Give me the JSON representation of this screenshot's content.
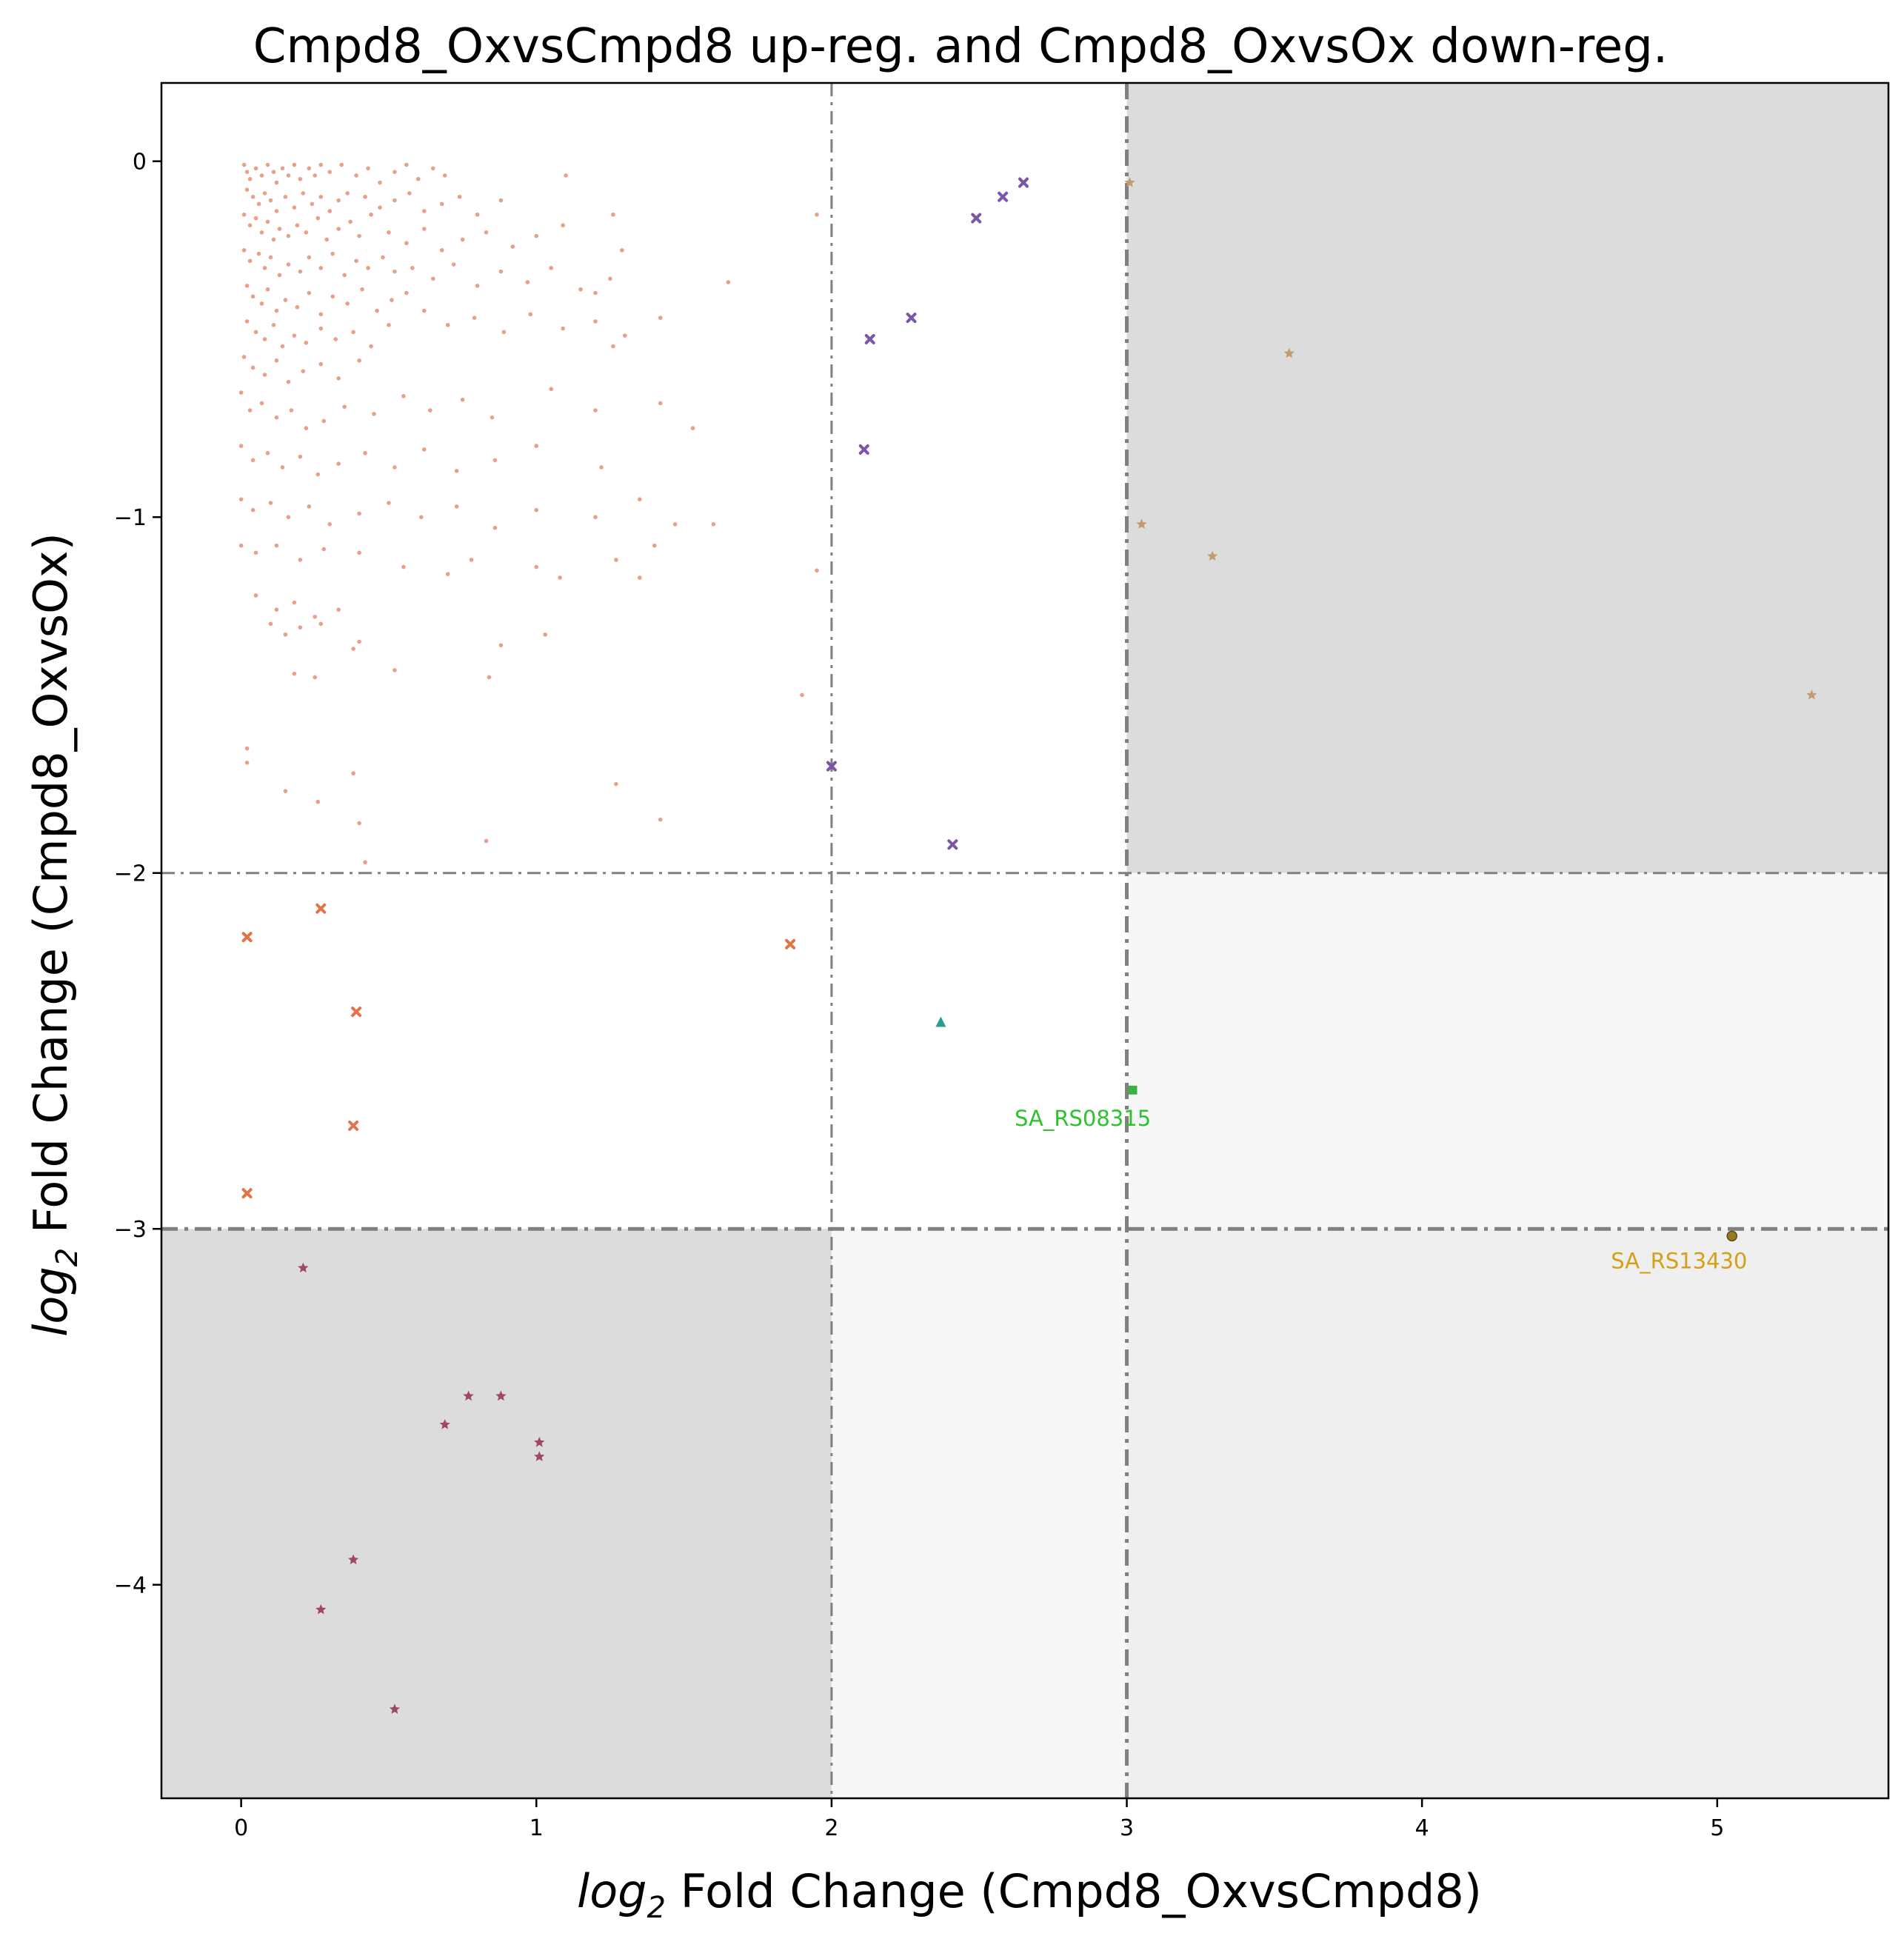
{
  "chart_data": {
    "type": "scatter",
    "title": "Cmpd8_OxvsCmpd8 up-reg. and Cmpd8_OxvsOx down-reg.",
    "xlabel_prefix": "log",
    "xlabel_sub": "2",
    "xlabel_rest": " Fold Change (Cmpd8_OxvsCmpd8)",
    "ylabel_prefix": "log",
    "ylabel_sub": "2",
    "ylabel_rest": " Fold Change (Cmpd8_OxvsOx)",
    "xlim": [
      -0.27,
      5.58
    ],
    "ylim": [
      -4.6,
      0.22
    ],
    "xticks": [
      0,
      1,
      2,
      3,
      4,
      5
    ],
    "yticks": [
      0,
      -1,
      -2,
      -3,
      -4
    ],
    "xtick_labels": [
      "0",
      "1",
      "2",
      "3",
      "4",
      "5"
    ],
    "ytick_labels": [
      "0",
      "−1",
      "−2",
      "−3",
      "−4"
    ],
    "grid": false,
    "threshold_lines": {
      "vertical": [
        {
          "x": 2,
          "style": "thin"
        },
        {
          "x": 3,
          "style": "thick"
        }
      ],
      "horizontal": [
        {
          "y": -2,
          "style": "thin"
        },
        {
          "y": -3,
          "style": "thick"
        }
      ]
    },
    "shaded_regions": [
      {
        "x": [
          3,
          5.58
        ],
        "y": [
          -2,
          0.22
        ],
        "color": "#dcdcdc"
      },
      {
        "x": [
          -0.27,
          2
        ],
        "y": [
          -4.6,
          -3
        ],
        "color": "#dcdcdc"
      },
      {
        "x": [
          3,
          5.58
        ],
        "y": [
          -3,
          -2
        ],
        "color": "#f7f7f7"
      },
      {
        "x": [
          2,
          3
        ],
        "y": [
          -4.6,
          -3
        ],
        "color": "#f7f7f7"
      },
      {
        "x": [
          3,
          5.58
        ],
        "y": [
          -4.6,
          -3
        ],
        "color": "#efefef"
      }
    ],
    "series": [
      {
        "group": "background",
        "marker": "dot",
        "color": "#e08060",
        "points": [
          [
            0.01,
            -0.01
          ],
          [
            0.02,
            -0.03
          ],
          [
            0.03,
            -0.05
          ],
          [
            0.05,
            -0.02
          ],
          [
            0.07,
            -0.04
          ],
          [
            0.09,
            -0.01
          ],
          [
            0.11,
            -0.03
          ],
          [
            0.12,
            -0.06
          ],
          [
            0.14,
            -0.02
          ],
          [
            0.16,
            -0.04
          ],
          [
            0.18,
            -0.01
          ],
          [
            0.2,
            -0.05
          ],
          [
            0.23,
            -0.02
          ],
          [
            0.25,
            -0.04
          ],
          [
            0.27,
            -0.01
          ],
          [
            0.3,
            -0.03
          ],
          [
            0.02,
            -0.08
          ],
          [
            0.04,
            -0.1
          ],
          [
            0.06,
            -0.12
          ],
          [
            0.08,
            -0.09
          ],
          [
            0.1,
            -0.11
          ],
          [
            0.12,
            -0.14
          ],
          [
            0.15,
            -0.1
          ],
          [
            0.18,
            -0.13
          ],
          [
            0.21,
            -0.09
          ],
          [
            0.24,
            -0.12
          ],
          [
            0.27,
            -0.1
          ],
          [
            0.3,
            -0.14
          ],
          [
            0.33,
            -0.11
          ],
          [
            0.36,
            -0.09
          ],
          [
            0.01,
            -0.15
          ],
          [
            0.03,
            -0.18
          ],
          [
            0.05,
            -0.16
          ],
          [
            0.07,
            -0.2
          ],
          [
            0.09,
            -0.17
          ],
          [
            0.11,
            -0.22
          ],
          [
            0.13,
            -0.19
          ],
          [
            0.16,
            -0.21
          ],
          [
            0.19,
            -0.18
          ],
          [
            0.22,
            -0.2
          ],
          [
            0.26,
            -0.16
          ],
          [
            0.29,
            -0.22
          ],
          [
            0.33,
            -0.19
          ],
          [
            0.37,
            -0.17
          ],
          [
            0.4,
            -0.21
          ],
          [
            0.44,
            -0.15
          ],
          [
            0.01,
            -0.25
          ],
          [
            0.03,
            -0.28
          ],
          [
            0.06,
            -0.26
          ],
          [
            0.08,
            -0.3
          ],
          [
            0.1,
            -0.27
          ],
          [
            0.13,
            -0.32
          ],
          [
            0.16,
            -0.29
          ],
          [
            0.2,
            -0.31
          ],
          [
            0.23,
            -0.27
          ],
          [
            0.27,
            -0.3
          ],
          [
            0.31,
            -0.26
          ],
          [
            0.35,
            -0.32
          ],
          [
            0.39,
            -0.28
          ],
          [
            0.43,
            -0.3
          ],
          [
            0.48,
            -0.27
          ],
          [
            0.52,
            -0.31
          ],
          [
            0.02,
            -0.35
          ],
          [
            0.04,
            -0.38
          ],
          [
            0.07,
            -0.4
          ],
          [
            0.09,
            -0.36
          ],
          [
            0.12,
            -0.42
          ],
          [
            0.15,
            -0.39
          ],
          [
            0.19,
            -0.41
          ],
          [
            0.23,
            -0.37
          ],
          [
            0.27,
            -0.43
          ],
          [
            0.31,
            -0.38
          ],
          [
            0.36,
            -0.4
          ],
          [
            0.41,
            -0.36
          ],
          [
            0.46,
            -0.42
          ],
          [
            0.51,
            -0.39
          ],
          [
            0.56,
            -0.37
          ],
          [
            0.02,
            -0.45
          ],
          [
            0.05,
            -0.48
          ],
          [
            0.08,
            -0.5
          ],
          [
            0.11,
            -0.46
          ],
          [
            0.14,
            -0.52
          ],
          [
            0.18,
            -0.49
          ],
          [
            0.22,
            -0.51
          ],
          [
            0.27,
            -0.47
          ],
          [
            0.32,
            -0.5
          ],
          [
            0.38,
            -0.48
          ],
          [
            0.44,
            -0.52
          ],
          [
            0.5,
            -0.46
          ],
          [
            0.01,
            -0.55
          ],
          [
            0.04,
            -0.58
          ],
          [
            0.08,
            -0.6
          ],
          [
            0.12,
            -0.56
          ],
          [
            0.16,
            -0.62
          ],
          [
            0.21,
            -0.59
          ],
          [
            0.27,
            -0.57
          ],
          [
            0.33,
            -0.61
          ],
          [
            0.4,
            -0.56
          ],
          [
            0.34,
            -0.01
          ],
          [
            0.39,
            -0.04
          ],
          [
            0.43,
            -0.02
          ],
          [
            0.47,
            -0.06
          ],
          [
            0.52,
            -0.03
          ],
          [
            0.56,
            -0.01
          ],
          [
            0.6,
            -0.05
          ],
          [
            0.65,
            -0.02
          ],
          [
            0.69,
            -0.04
          ],
          [
            0.42,
            -0.1
          ],
          [
            0.47,
            -0.13
          ],
          [
            0.52,
            -0.11
          ],
          [
            0.57,
            -0.09
          ],
          [
            0.62,
            -0.14
          ],
          [
            0.68,
            -0.12
          ],
          [
            0.74,
            -0.1
          ],
          [
            0.8,
            -0.15
          ],
          [
            0.88,
            -0.11
          ],
          [
            0.5,
            -0.2
          ],
          [
            0.56,
            -0.23
          ],
          [
            0.62,
            -0.19
          ],
          [
            0.68,
            -0.25
          ],
          [
            0.75,
            -0.22
          ],
          [
            0.83,
            -0.2
          ],
          [
            0.92,
            -0.24
          ],
          [
            1.0,
            -0.21
          ],
          [
            1.09,
            -0.18
          ],
          [
            0.58,
            -0.3
          ],
          [
            0.65,
            -0.33
          ],
          [
            0.72,
            -0.29
          ],
          [
            0.8,
            -0.35
          ],
          [
            0.88,
            -0.31
          ],
          [
            0.97,
            -0.34
          ],
          [
            1.05,
            -0.3
          ],
          [
            1.15,
            -0.36
          ],
          [
            1.25,
            -0.33
          ],
          [
            0.62,
            -0.42
          ],
          [
            0.7,
            -0.46
          ],
          [
            0.79,
            -0.44
          ],
          [
            0.89,
            -0.48
          ],
          [
            0.98,
            -0.43
          ],
          [
            1.09,
            -0.47
          ],
          [
            1.2,
            -0.45
          ],
          [
            1.3,
            -0.49
          ],
          [
            0.0,
            -0.65
          ],
          [
            0.03,
            -0.7
          ],
          [
            0.07,
            -0.68
          ],
          [
            0.12,
            -0.72
          ],
          [
            0.17,
            -0.7
          ],
          [
            0.22,
            -0.75
          ],
          [
            0.28,
            -0.73
          ],
          [
            0.35,
            -0.69
          ],
          [
            0.45,
            -0.71
          ],
          [
            0.55,
            -0.66
          ],
          [
            0.64,
            -0.7
          ],
          [
            0.75,
            -0.67
          ],
          [
            0.85,
            -0.72
          ],
          [
            1.05,
            -0.64
          ],
          [
            1.2,
            -0.7
          ],
          [
            1.42,
            -0.68
          ],
          [
            0.0,
            -0.8
          ],
          [
            0.04,
            -0.84
          ],
          [
            0.09,
            -0.82
          ],
          [
            0.14,
            -0.86
          ],
          [
            0.2,
            -0.83
          ],
          [
            0.26,
            -0.88
          ],
          [
            0.33,
            -0.85
          ],
          [
            0.42,
            -0.82
          ],
          [
            0.52,
            -0.86
          ],
          [
            0.62,
            -0.81
          ],
          [
            0.73,
            -0.87
          ],
          [
            0.86,
            -0.84
          ],
          [
            1.0,
            -0.8
          ],
          [
            1.22,
            -0.86
          ],
          [
            1.53,
            -0.75
          ],
          [
            0.0,
            -0.95
          ],
          [
            0.04,
            -0.98
          ],
          [
            0.1,
            -0.96
          ],
          [
            0.16,
            -1.0
          ],
          [
            0.23,
            -0.97
          ],
          [
            0.3,
            -1.02
          ],
          [
            0.4,
            -0.99
          ],
          [
            0.5,
            -0.96
          ],
          [
            0.61,
            -1.0
          ],
          [
            0.73,
            -0.97
          ],
          [
            0.86,
            -1.03
          ],
          [
            1.0,
            -0.98
          ],
          [
            1.2,
            -1.0
          ],
          [
            1.35,
            -0.95
          ],
          [
            1.47,
            -1.02
          ],
          [
            1.6,
            -1.02
          ],
          [
            0.0,
            -1.08
          ],
          [
            0.05,
            -1.1
          ],
          [
            0.12,
            -1.08
          ],
          [
            0.2,
            -1.12
          ],
          [
            0.28,
            -1.09
          ],
          [
            0.4,
            -1.1
          ],
          [
            0.55,
            -1.14
          ],
          [
            0.7,
            -1.16
          ],
          [
            0.78,
            -1.12
          ],
          [
            1.0,
            -1.14
          ],
          [
            1.08,
            -1.17
          ],
          [
            1.27,
            -1.12
          ],
          [
            1.35,
            -1.17
          ],
          [
            1.4,
            -1.08
          ],
          [
            1.95,
            -1.15
          ],
          [
            0.05,
            -1.22
          ],
          [
            0.12,
            -1.26
          ],
          [
            0.18,
            -1.24
          ],
          [
            0.25,
            -1.28
          ],
          [
            0.33,
            -1.26
          ],
          [
            0.1,
            -1.3
          ],
          [
            0.15,
            -1.33
          ],
          [
            0.2,
            -1.31
          ],
          [
            0.27,
            -1.3
          ],
          [
            0.38,
            -1.37
          ],
          [
            0.4,
            -1.35
          ],
          [
            0.52,
            -1.43
          ],
          [
            0.84,
            -1.45
          ],
          [
            0.88,
            -1.36
          ],
          [
            1.03,
            -1.33
          ],
          [
            0.25,
            -1.45
          ],
          [
            0.18,
            -1.44
          ],
          [
            0.02,
            -1.65
          ],
          [
            0.02,
            -1.69
          ],
          [
            0.15,
            -1.77
          ],
          [
            0.26,
            -1.8
          ],
          [
            0.38,
            -1.72
          ],
          [
            0.4,
            -1.86
          ],
          [
            0.42,
            -1.97
          ],
          [
            0.83,
            -1.91
          ],
          [
            1.27,
            -1.75
          ],
          [
            1.42,
            -1.85
          ],
          [
            1.9,
            -1.5
          ],
          [
            1.1,
            -0.04
          ],
          [
            1.2,
            -0.37
          ],
          [
            1.26,
            -0.15
          ],
          [
            1.26,
            -0.52
          ],
          [
            1.29,
            -0.25
          ],
          [
            1.42,
            -0.44
          ],
          [
            1.65,
            -0.34
          ],
          [
            1.95,
            -0.15
          ]
        ]
      },
      {
        "group": "x up only (marker x)",
        "marker": "x",
        "color": "#7b55a8",
        "points": [
          [
            2.0,
            -1.7
          ],
          [
            2.11,
            -0.81
          ],
          [
            2.13,
            -0.5
          ],
          [
            2.27,
            -0.44
          ],
          [
            2.41,
            -1.92
          ],
          [
            2.49,
            -0.16
          ],
          [
            2.58,
            -0.1
          ],
          [
            2.65,
            -0.06
          ]
        ]
      },
      {
        "group": "y down only (marker x)",
        "marker": "x",
        "color": "#e2744a",
        "points": [
          [
            0.02,
            -2.18
          ],
          [
            0.27,
            -2.1
          ],
          [
            0.39,
            -2.39
          ],
          [
            0.38,
            -2.71
          ],
          [
            0.02,
            -2.9
          ],
          [
            1.86,
            -2.2
          ]
        ]
      },
      {
        "group": "y strongly down (marker star)",
        "marker": "star",
        "color": "#a04860",
        "points": [
          [
            0.21,
            -3.11
          ],
          [
            0.69,
            -3.55
          ],
          [
            0.77,
            -3.47
          ],
          [
            0.88,
            -3.47
          ],
          [
            1.01,
            -3.6
          ],
          [
            1.01,
            -3.64
          ],
          [
            0.38,
            -3.93
          ],
          [
            0.27,
            -4.07
          ],
          [
            0.52,
            -4.35
          ]
        ]
      },
      {
        "group": "x strongly up (marker star)",
        "marker": "star",
        "color": "#c49a70",
        "points": [
          [
            3.01,
            -0.06
          ],
          [
            3.05,
            -1.02
          ],
          [
            3.55,
            -0.54
          ],
          [
            3.29,
            -1.11
          ],
          [
            5.32,
            -1.5
          ]
        ]
      },
      {
        "group": "intermediate (marker triangle)",
        "marker": "triangle",
        "color": "#2a9d8f",
        "points": [
          [
            2.37,
            -2.42
          ]
        ]
      },
      {
        "group": "SA_RS08315",
        "marker": "square",
        "color": "#3cb043",
        "points": [
          [
            3.02,
            -2.61
          ]
        ]
      },
      {
        "group": "SA_RS13430",
        "marker": "circle",
        "color": "#9a7a20",
        "points": [
          [
            5.05,
            -3.02
          ]
        ]
      }
    ],
    "annotations": [
      {
        "text": "SA_RS08315",
        "x": 2.62,
        "y": -2.69,
        "color": "#2ec22e"
      },
      {
        "text": "SA_RS13430",
        "x": 4.64,
        "y": -3.09,
        "color": "#d4a017"
      }
    ]
  }
}
